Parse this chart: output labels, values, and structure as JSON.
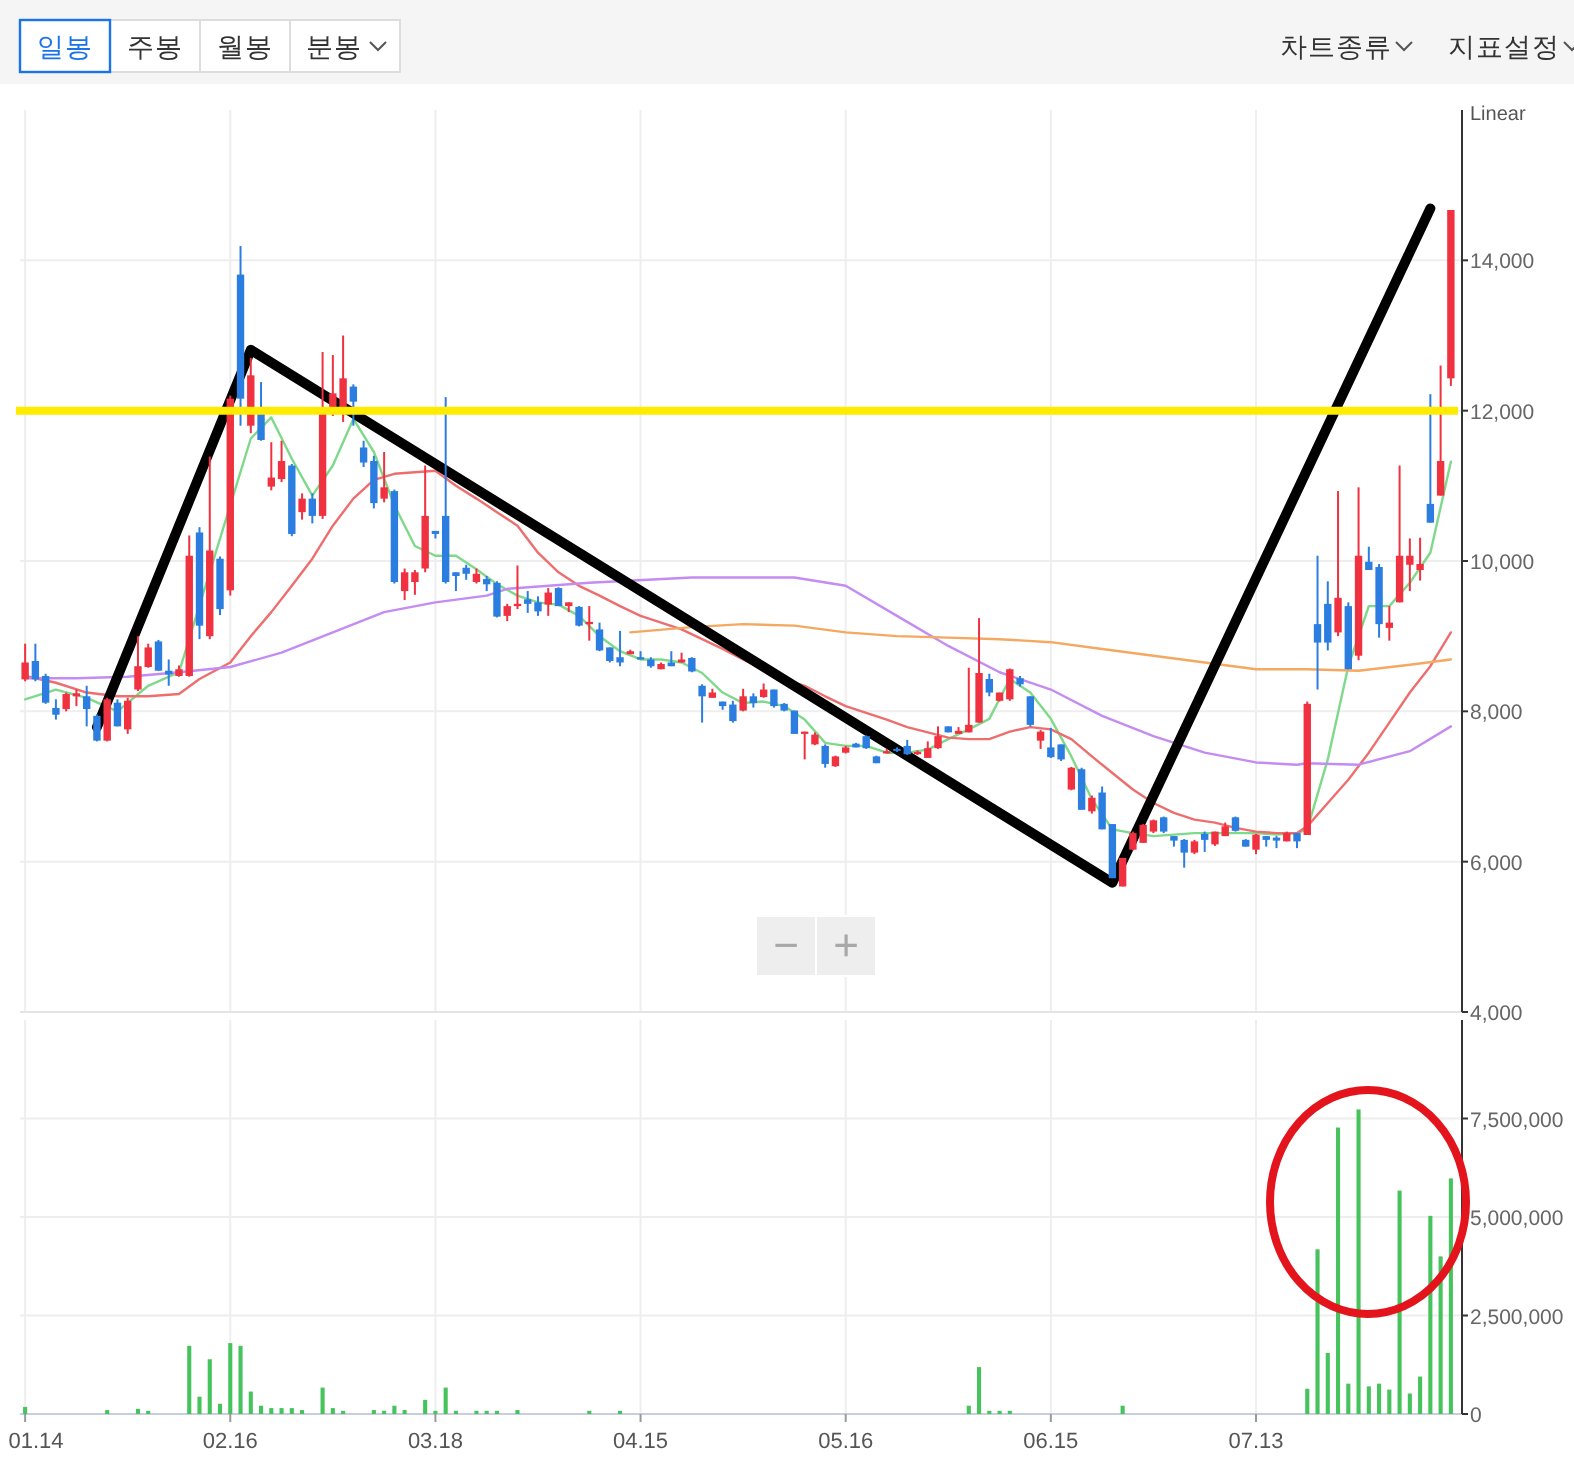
{
  "chart_data": [
    {
      "type": "other",
      "annotations": [
        "일봉",
        "주봉",
        "월봉",
        "분봉",
        "차트종류",
        "지표설정"
      ]
    },
    {
      "type": "candlestick",
      "tick_labels": "y",
      "grid": true,
      "ylim": [
        4000,
        16000
      ],
      "yticks": [
        {
          "value": 4000,
          "label": "4,000"
        },
        {
          "value": 6000,
          "label": "6,000"
        },
        {
          "value": 8000,
          "label": "8,000"
        },
        {
          "value": 10000,
          "label": "10,000"
        },
        {
          "value": 12000,
          "label": "12,000"
        },
        {
          "value": 14000,
          "label": "14,000"
        }
      ],
      "annotations": [
        "Linear",
        "−",
        "+"
      ],
      "categories": [
        "01.14",
        null,
        null,
        null,
        null,
        null,
        null,
        null,
        null,
        null,
        null,
        null,
        null,
        null,
        null,
        null,
        null,
        null,
        null,
        null,
        "02.16",
        null,
        null,
        null,
        null,
        null,
        null,
        null,
        null,
        null,
        null,
        null,
        null,
        null,
        null,
        null,
        null,
        null,
        null,
        null,
        "03.18",
        null,
        null,
        null,
        null,
        null,
        null,
        null,
        null,
        null,
        null,
        null,
        null,
        null,
        null,
        null,
        null,
        null,
        null,
        null,
        "04.15",
        null,
        null,
        null,
        null,
        null,
        null,
        null,
        null,
        null,
        null,
        null,
        null,
        null,
        null,
        null,
        null,
        null,
        null,
        null,
        "05.16",
        null,
        null,
        null,
        null,
        null,
        null,
        null,
        null,
        null,
        null,
        null,
        null,
        null,
        null,
        null,
        null,
        null,
        null,
        null,
        "06.15",
        null,
        null,
        null,
        null,
        null,
        null,
        null,
        null,
        null,
        null,
        null,
        null,
        null,
        null,
        null,
        null,
        null,
        null,
        null,
        "07.13",
        null,
        null,
        null,
        null,
        null,
        null,
        null,
        null,
        null,
        null,
        null,
        null,
        null,
        null,
        null,
        null,
        null,
        null,
        null
      ],
      "ohlc": [
        [
          8425,
          8900,
          8400,
          8650
        ],
        [
          8670,
          8900,
          8400,
          8425
        ],
        [
          8470,
          8500,
          8100,
          8115
        ],
        [
          8045,
          8160,
          7890,
          7955
        ],
        [
          8030,
          8250,
          8000,
          8230
        ],
        [
          8200,
          8290,
          8070,
          8240
        ],
        [
          8200,
          8340,
          7800,
          8030
        ],
        [
          7940,
          7960,
          7600,
          7610
        ],
        [
          7610,
          8180,
          7600,
          8160
        ],
        [
          8115,
          8160,
          7800,
          7800
        ],
        [
          7760,
          8180,
          7700,
          8140
        ],
        [
          8290,
          9000,
          8270,
          8600
        ],
        [
          8590,
          8900,
          8580,
          8850
        ],
        [
          8930,
          8950,
          8540,
          8540
        ],
        [
          8540,
          8690,
          8340,
          8490
        ],
        [
          8470,
          8610,
          8460,
          8560
        ],
        [
          8470,
          10340,
          8460,
          10070
        ],
        [
          10380,
          10450,
          8960,
          9140
        ],
        [
          9000,
          11390,
          8960,
          10140
        ],
        [
          10030,
          10060,
          9280,
          9360
        ],
        [
          9610,
          12200,
          9540,
          12160
        ],
        [
          13810,
          14190,
          11800,
          12160
        ],
        [
          11800,
          12700,
          11700,
          12470
        ],
        [
          12030,
          12380,
          11600,
          11610
        ],
        [
          10990,
          11580,
          10940,
          11110
        ],
        [
          11090,
          11600,
          11050,
          11330
        ],
        [
          11270,
          11290,
          10330,
          10360
        ],
        [
          10650,
          10900,
          10550,
          10830
        ],
        [
          10830,
          10900,
          10500,
          10600
        ],
        [
          10600,
          12780,
          10560,
          11980
        ],
        [
          11960,
          12740,
          11930,
          12230
        ],
        [
          11980,
          13000,
          11850,
          12430
        ],
        [
          12320,
          12350,
          11800,
          12120
        ],
        [
          11510,
          11600,
          11250,
          11310
        ],
        [
          11330,
          11400,
          10700,
          10770
        ],
        [
          10830,
          11450,
          10780,
          10980
        ],
        [
          10930,
          10950,
          9700,
          9720
        ],
        [
          9600,
          9900,
          9480,
          9850
        ],
        [
          9720,
          9880,
          9550,
          9850
        ],
        [
          9900,
          11270,
          9850,
          10600
        ],
        [
          10400,
          10400,
          10300,
          10360
        ],
        [
          10600,
          12180,
          9700,
          9720
        ],
        [
          9850,
          9850,
          9600,
          9800
        ],
        [
          9910,
          9950,
          9750,
          9830
        ],
        [
          9720,
          9900,
          9700,
          9830
        ],
        [
          9760,
          9800,
          9600,
          9690
        ],
        [
          9710,
          9730,
          9250,
          9260
        ],
        [
          9270,
          9430,
          9200,
          9400
        ],
        [
          9400,
          9940,
          9360,
          9430
        ],
        [
          9490,
          9600,
          9310,
          9430
        ],
        [
          9450,
          9530,
          9270,
          9330
        ],
        [
          9420,
          9640,
          9270,
          9580
        ],
        [
          9640,
          9650,
          9400,
          9400
        ],
        [
          9400,
          9450,
          9320,
          9450
        ],
        [
          9390,
          9400,
          9130,
          9140
        ],
        [
          9160,
          9400,
          8940,
          9190
        ],
        [
          9090,
          9180,
          8800,
          8810
        ],
        [
          8850,
          8850,
          8650,
          8670
        ],
        [
          8720,
          9070,
          8600,
          8650
        ],
        [
          8760,
          8820,
          8760,
          8800
        ],
        [
          8720,
          8800,
          8690,
          8690
        ],
        [
          8690,
          8720,
          8580,
          8600
        ],
        [
          8560,
          8650,
          8560,
          8630
        ],
        [
          8650,
          8800,
          8600,
          8600
        ],
        [
          8650,
          8780,
          8650,
          8690
        ],
        [
          8710,
          8720,
          8520,
          8530
        ],
        [
          8340,
          8360,
          7850,
          8200
        ],
        [
          8180,
          8300,
          8180,
          8250
        ],
        [
          8130,
          8130,
          8020,
          8070
        ],
        [
          8090,
          8140,
          7850,
          7870
        ],
        [
          8010,
          8300,
          8000,
          8200
        ],
        [
          8200,
          8240,
          8050,
          8110
        ],
        [
          8190,
          8370,
          8180,
          8290
        ],
        [
          8290,
          8290,
          8050,
          8070
        ],
        [
          8100,
          8110,
          8000,
          8010
        ],
        [
          8010,
          8010,
          7700,
          7700
        ],
        [
          7700,
          7730,
          7360,
          7730
        ],
        [
          7560,
          7720,
          7550,
          7690
        ],
        [
          7540,
          7560,
          7250,
          7300
        ],
        [
          7270,
          7410,
          7260,
          7400
        ],
        [
          7450,
          7540,
          7440,
          7520
        ],
        [
          7570,
          7580,
          7520,
          7520
        ],
        [
          7670,
          7680,
          7500,
          7510
        ],
        [
          7400,
          7410,
          7310,
          7310
        ],
        [
          7440,
          7500,
          7440,
          7470
        ],
        [
          7500,
          7520,
          7460,
          7480
        ],
        [
          7540,
          7620,
          7420,
          7430
        ],
        [
          7430,
          7480,
          7420,
          7460
        ],
        [
          7380,
          7600,
          7380,
          7510
        ],
        [
          7510,
          7800,
          7500,
          7670
        ],
        [
          7800,
          7800,
          7720,
          7720
        ],
        [
          7700,
          7790,
          7700,
          7740
        ],
        [
          7720,
          8580,
          7720,
          7820
        ],
        [
          7850,
          9240,
          7850,
          8510
        ],
        [
          8430,
          8500,
          8200,
          8250
        ],
        [
          8140,
          8250,
          8130,
          8250
        ],
        [
          8160,
          8570,
          8140,
          8560
        ],
        [
          8440,
          8470,
          8330,
          8360
        ],
        [
          8200,
          8200,
          7800,
          7820
        ],
        [
          7610,
          7750,
          7500,
          7730
        ],
        [
          7520,
          7780,
          7380,
          7390
        ],
        [
          7560,
          7560,
          7340,
          7360
        ],
        [
          6960,
          7260,
          6950,
          7250
        ],
        [
          7230,
          7250,
          6690,
          6690
        ],
        [
          6670,
          6880,
          6640,
          6850
        ],
        [
          6920,
          7000,
          6430,
          6430
        ],
        [
          6500,
          6500,
          5780,
          5780
        ],
        [
          5670,
          6050,
          5670,
          6050
        ],
        [
          6160,
          6400,
          6150,
          6380
        ],
        [
          6250,
          6500,
          6250,
          6490
        ],
        [
          6400,
          6560,
          6380,
          6550
        ],
        [
          6590,
          6600,
          6380,
          6400
        ],
        [
          6340,
          6340,
          6200,
          6280
        ],
        [
          6290,
          6300,
          5920,
          6120
        ],
        [
          6120,
          6290,
          6100,
          6270
        ],
        [
          6370,
          6400,
          6130,
          6290
        ],
        [
          6230,
          6400,
          6210,
          6400
        ],
        [
          6340,
          6520,
          6340,
          6470
        ],
        [
          6590,
          6600,
          6400,
          6410
        ],
        [
          6290,
          6300,
          6200,
          6200
        ],
        [
          6160,
          6370,
          6100,
          6360
        ],
        [
          6340,
          6340,
          6200,
          6290
        ],
        [
          6320,
          6340,
          6180,
          6280
        ],
        [
          6270,
          6400,
          6270,
          6380
        ],
        [
          6380,
          6380,
          6180,
          6270
        ],
        [
          6355,
          8130,
          6355,
          8100
        ],
        [
          9160,
          10070,
          8290,
          8915
        ],
        [
          9430,
          9730,
          8810,
          8915
        ],
        [
          9050,
          10930,
          9000,
          9510
        ],
        [
          9400,
          9450,
          8560,
          8560
        ],
        [
          8740,
          10980,
          8680,
          10070
        ],
        [
          9990,
          10190,
          9880,
          9880
        ],
        [
          9920,
          9960,
          8980,
          9160
        ],
        [
          9110,
          9400,
          8940,
          9180
        ],
        [
          9450,
          11270,
          9450,
          10070
        ],
        [
          9950,
          10300,
          9600,
          10070
        ],
        [
          9880,
          10310,
          9740,
          9960
        ],
        [
          10760,
          12220,
          10510,
          10510
        ],
        [
          10870,
          12600,
          10870,
          11330
        ],
        [
          12430,
          14670,
          12330,
          14670
        ]
      ],
      "series": [
        {
          "type": "line",
          "color": "#7fd98a",
          "values": [
            8160,
            null,
            null,
            8290,
            null,
            null,
            8180,
            null,
            null,
            8000,
            null,
            null,
            8340,
            null,
            null,
            8520,
            null,
            null,
            null,
            null,
            null,
            null,
            11630,
            null,
            11910,
            null,
            11360,
            null,
            10870,
            null,
            11270,
            null,
            11890,
            null,
            11450,
            null,
            10740,
            null,
            10200,
            null,
            10070,
            null,
            10070,
            null,
            9890,
            null,
            9690,
            null,
            9540,
            null,
            9450,
            null,
            9420,
            null,
            9270,
            null,
            9000,
            null,
            8800,
            null,
            8690,
            null,
            8690,
            null,
            8650,
            null,
            8510,
            null,
            8250,
            null,
            8110,
            null,
            8130,
            null,
            8070,
            null,
            7890,
            null,
            7580,
            null,
            7540,
            null,
            7540,
            null,
            7450,
            null,
            7450,
            null,
            7490,
            null,
            7630,
            null,
            7760,
            null,
            7900,
            null,
            8430,
            null,
            8250,
            null,
            7900,
            null,
            7400,
            null,
            6830,
            null,
            6430,
            null,
            6380,
            null,
            6340,
            null,
            6360,
            null,
            6380,
            null,
            6380,
            null,
            6380,
            null,
            6380,
            null,
            6360,
            null,
            6380,
            6430,
            null,
            7360,
            null,
            8600,
            null,
            9400,
            null,
            9400,
            null,
            9710,
            null,
            10110,
            null,
            11320
          ]
        },
        {
          "type": "line",
          "color": "#ee6e6e",
          "values": [
            8470,
            null,
            null,
            8380,
            null,
            null,
            8250,
            null,
            null,
            8200,
            null,
            null,
            8200,
            null,
            null,
            8230,
            null,
            8430,
            null,
            null,
            8650,
            null,
            9000,
            null,
            9320,
            null,
            9670,
            null,
            10030,
            null,
            10470,
            null,
            10830,
            null,
            11080,
            null,
            11160,
            null,
            11180,
            null,
            11200,
            null,
            11000,
            null,
            10830,
            null,
            10650,
            null,
            10470,
            null,
            10110,
            null,
            9850,
            null,
            9670,
            null,
            9540,
            null,
            9400,
            null,
            9270,
            null,
            9180,
            null,
            9090,
            null,
            8960,
            null,
            8830,
            null,
            8690,
            null,
            null,
            null,
            8430,
            null,
            8340,
            null,
            8200,
            null,
            8070,
            null,
            7980,
            null,
            7890,
            null,
            7790,
            null,
            7720,
            null,
            7650,
            null,
            7630,
            null,
            7630,
            null,
            7730,
            null,
            7790,
            null,
            7760,
            null,
            7630,
            null,
            7400,
            null,
            7180,
            null,
            6960,
            null,
            6780,
            null,
            6650,
            null,
            6560,
            null,
            6520,
            null,
            6450,
            null,
            6400,
            null,
            6380,
            null,
            6380,
            6470,
            null,
            6780,
            null,
            7090,
            null,
            7450,
            null,
            7850,
            null,
            8250,
            null,
            8600,
            null,
            9050
          ]
        },
        {
          "type": "line",
          "color": "#c48cf2",
          "values": [
            8440,
            null,
            null,
            null,
            null,
            8440,
            null,
            null,
            null,
            null,
            8460,
            null,
            null,
            null,
            null,
            8520,
            null,
            null,
            null,
            null,
            8590,
            null,
            null,
            null,
            null,
            8780,
            null,
            null,
            null,
            null,
            9050,
            null,
            null,
            null,
            null,
            9320,
            null,
            null,
            null,
            null,
            9450,
            null,
            null,
            null,
            null,
            9540,
            null,
            9630,
            null,
            null,
            null,
            null,
            null,
            null,
            null,
            9710,
            null,
            null,
            null,
            null,
            null,
            null,
            null,
            null,
            null,
            9780,
            null,
            null,
            null,
            null,
            null,
            null,
            null,
            null,
            null,
            9780,
            null,
            null,
            null,
            null,
            9670,
            null,
            null,
            null,
            null,
            9270,
            null,
            null,
            null,
            null,
            8870,
            null,
            null,
            null,
            null,
            8520,
            null,
            null,
            null,
            null,
            8290,
            null,
            null,
            null,
            null,
            7940,
            null,
            null,
            null,
            null,
            7670,
            null,
            null,
            null,
            null,
            7450,
            null,
            null,
            null,
            null,
            7320,
            null,
            null,
            null,
            7290,
            7310,
            null,
            null,
            null,
            null,
            7290,
            null,
            null,
            null,
            null,
            7470,
            null,
            null,
            null,
            7800
          ]
        },
        {
          "type": "line",
          "color": "#f4a860",
          "values": [
            null,
            null,
            null,
            null,
            null,
            null,
            null,
            null,
            null,
            null,
            null,
            null,
            null,
            null,
            null,
            null,
            null,
            null,
            null,
            null,
            null,
            null,
            null,
            null,
            null,
            null,
            null,
            null,
            null,
            null,
            null,
            null,
            null,
            null,
            null,
            null,
            null,
            null,
            null,
            null,
            null,
            null,
            null,
            null,
            null,
            null,
            null,
            null,
            null,
            null,
            null,
            null,
            null,
            null,
            null,
            null,
            null,
            null,
            null,
            9050,
            null,
            null,
            null,
            null,
            null,
            9120,
            null,
            null,
            null,
            null,
            9160,
            null,
            null,
            null,
            null,
            9140,
            null,
            null,
            null,
            null,
            9050,
            null,
            null,
            null,
            null,
            9000,
            null,
            null,
            null,
            null,
            8980,
            null,
            null,
            null,
            null,
            8960,
            null,
            null,
            null,
            null,
            8920,
            null,
            null,
            null,
            null,
            8830,
            null,
            null,
            null,
            null,
            8740,
            null,
            null,
            null,
            null,
            8650,
            null,
            null,
            null,
            null,
            8560,
            null,
            null,
            null,
            null,
            8560,
            null,
            null,
            null,
            null,
            8540,
            null,
            null,
            null,
            null,
            8620,
            null,
            null,
            null,
            8690
          ]
        },
        {
          "type": "line",
          "color": "#000000",
          "values": [
            null,
            null,
            null,
            null,
            null,
            null,
            null,
            7790,
            null,
            null,
            null,
            null,
            null,
            null,
            null,
            null,
            null,
            null,
            null,
            null,
            null,
            null,
            12810,
            null,
            null,
            null,
            null,
            null,
            null,
            null,
            null,
            null,
            null,
            null,
            null,
            null,
            null,
            null,
            null,
            null,
            null,
            null,
            null,
            null,
            null,
            null,
            null,
            null,
            null,
            null,
            null,
            null,
            null,
            null,
            null,
            null,
            null,
            null,
            null,
            null,
            null,
            null,
            null,
            null,
            null,
            null,
            null,
            null,
            null,
            null,
            null,
            null,
            null,
            null,
            null,
            null,
            null,
            null,
            null,
            null,
            null,
            null,
            null,
            null,
            null,
            null,
            null,
            null,
            null,
            null,
            null,
            null,
            null,
            null,
            null,
            null,
            null,
            null,
            null,
            null,
            null,
            null,
            null,
            null,
            null,
            null,
            5720,
            null,
            null,
            null,
            null,
            null,
            null,
            null,
            null,
            null,
            null,
            null,
            null,
            null,
            null,
            null,
            null,
            null,
            null,
            null,
            null,
            null,
            null,
            null,
            null,
            null,
            null,
            null,
            null,
            null,
            null,
            14690,
            null,
            null
          ]
        }
      ],
      "ref_lines": [
        {
          "axis": "y",
          "value": 12000,
          "color": "#ffeb00"
        }
      ]
    },
    {
      "type": "bar",
      "color": "#46c35d",
      "grid": true,
      "ylim": [
        0,
        10000000
      ],
      "yticks": [
        0,
        {
          "value": 2500000,
          "label": "2,500,000"
        },
        {
          "value": 5000000,
          "label": "5,000,000"
        },
        {
          "value": 7500000,
          "label": "7,500,000"
        }
      ],
      "categories": [
        "01.14",
        null,
        null,
        null,
        null,
        null,
        null,
        null,
        null,
        null,
        null,
        null,
        null,
        null,
        null,
        null,
        null,
        null,
        null,
        null,
        "02.16",
        null,
        null,
        null,
        null,
        null,
        null,
        null,
        null,
        null,
        null,
        null,
        null,
        null,
        null,
        null,
        null,
        null,
        null,
        null,
        "03.18",
        null,
        null,
        null,
        null,
        null,
        null,
        null,
        null,
        null,
        null,
        null,
        null,
        null,
        null,
        null,
        null,
        null,
        null,
        null,
        "04.15",
        null,
        null,
        null,
        null,
        null,
        null,
        null,
        null,
        null,
        null,
        null,
        null,
        null,
        null,
        null,
        null,
        null,
        null,
        null,
        "05.16",
        null,
        null,
        null,
        null,
        null,
        null,
        null,
        null,
        null,
        null,
        null,
        null,
        null,
        null,
        null,
        null,
        null,
        null,
        null,
        "06.15",
        null,
        null,
        null,
        null,
        null,
        null,
        null,
        null,
        null,
        null,
        null,
        null,
        null,
        null,
        null,
        null,
        null,
        null,
        null,
        "07.13",
        null,
        null,
        null,
        null,
        null,
        null,
        null,
        null,
        null,
        null,
        null,
        null,
        null,
        null,
        null,
        null,
        null,
        null,
        null
      ],
      "values": [
        180000,
        0,
        0,
        0,
        0,
        0,
        0,
        0,
        100000,
        0,
        0,
        130000,
        80000,
        0,
        0,
        0,
        1730000,
        440000,
        1390000,
        260000,
        1800000,
        1730000,
        570000,
        210000,
        150000,
        150000,
        150000,
        100000,
        0,
        670000,
        150000,
        80000,
        0,
        0,
        100000,
        80000,
        210000,
        100000,
        0,
        360000,
        80000,
        670000,
        80000,
        0,
        80000,
        80000,
        80000,
        0,
        100000,
        0,
        0,
        0,
        0,
        0,
        0,
        80000,
        0,
        0,
        80000,
        0,
        0,
        0,
        0,
        0,
        0,
        0,
        0,
        0,
        0,
        0,
        0,
        0,
        0,
        0,
        0,
        0,
        0,
        0,
        0,
        0,
        0,
        0,
        0,
        0,
        0,
        0,
        0,
        0,
        0,
        0,
        0,
        0,
        210000,
        1190000,
        80000,
        80000,
        80000,
        0,
        0,
        0,
        0,
        0,
        0,
        0,
        0,
        0,
        0,
        210000,
        0,
        0,
        0,
        0,
        0,
        0,
        0,
        0,
        0,
        0,
        0,
        0,
        0,
        0,
        0,
        0,
        0,
        640000,
        4180000,
        1550000,
        7270000,
        770000,
        7730000,
        700000,
        770000,
        620000,
        5670000,
        520000,
        950000,
        5030000,
        4000000,
        5980000
      ]
    }
  ]
}
